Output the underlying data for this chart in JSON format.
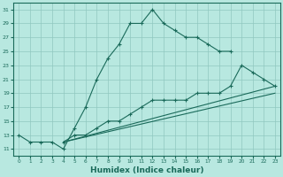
{
  "xlabel": "Humidex (Indice chaleur)",
  "bg_color": "#b8e8e0",
  "grid_color": "#90c8c0",
  "line_color": "#1a6a5a",
  "xlim": [
    -0.5,
    23.5
  ],
  "ylim": [
    10,
    32
  ],
  "xticks": [
    0,
    1,
    2,
    3,
    4,
    5,
    6,
    7,
    8,
    9,
    10,
    11,
    12,
    13,
    14,
    15,
    16,
    17,
    18,
    19,
    20,
    21,
    22,
    23
  ],
  "yticks": [
    11,
    13,
    15,
    17,
    19,
    21,
    23,
    25,
    27,
    29,
    31
  ],
  "line1_x": [
    0,
    1,
    2,
    3,
    4,
    5,
    6,
    7,
    8,
    9,
    10,
    11,
    12,
    13,
    14,
    15,
    16,
    17,
    18,
    19
  ],
  "line1_y": [
    13,
    12,
    12,
    12,
    11,
    14,
    17,
    21,
    24,
    26,
    29,
    29,
    31,
    29,
    28,
    27,
    27,
    26,
    25,
    25
  ],
  "line2_x": [
    4,
    5,
    6,
    7,
    8,
    9,
    10,
    11,
    12,
    13,
    14,
    15,
    16,
    17,
    18,
    19,
    20,
    21,
    22,
    23
  ],
  "line2_y": [
    12,
    13,
    13,
    14,
    15,
    15,
    16,
    17,
    18,
    18,
    18,
    18,
    19,
    19,
    19,
    20,
    23,
    22,
    21,
    20
  ],
  "line3_x": [
    4,
    23
  ],
  "line3_y": [
    12,
    20
  ],
  "line4_x": [
    4,
    23
  ],
  "line4_y": [
    12,
    19
  ]
}
